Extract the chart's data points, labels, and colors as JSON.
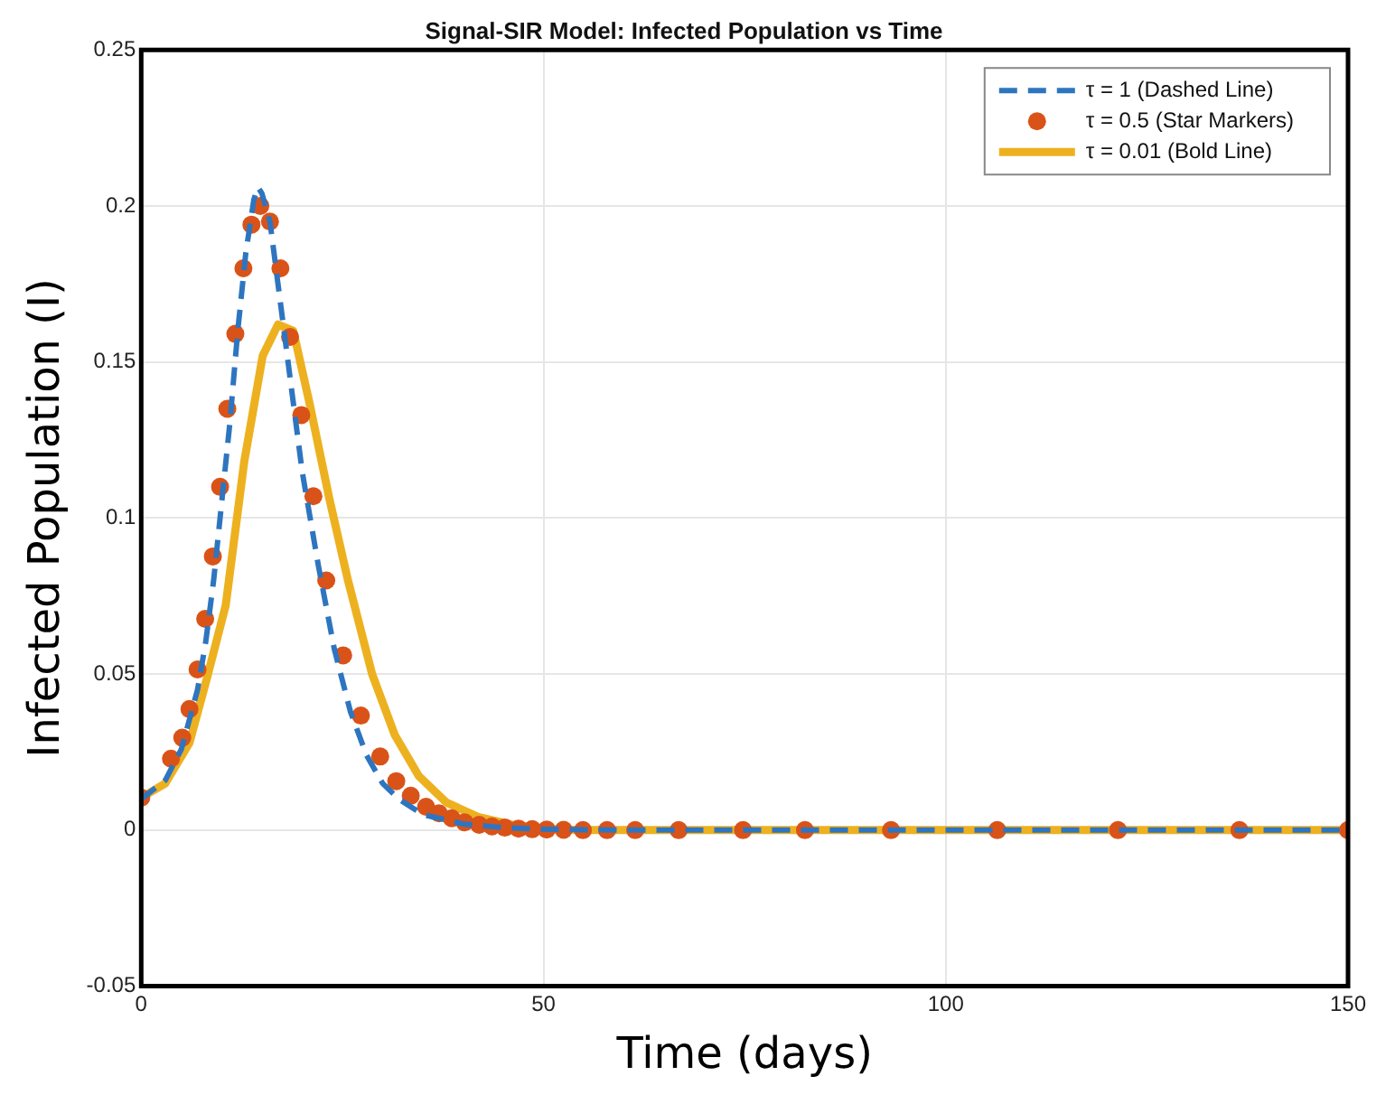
{
  "chart_data": {
    "type": "line",
    "title": "Signal-SIR Model: Infected Population vs Time",
    "xlabel": "Time (days)",
    "ylabel": "Infected Population (I)",
    "xlim": [
      0,
      150
    ],
    "xticks": [
      0,
      50,
      100,
      150
    ],
    "ylim": [
      -0.05,
      0.25
    ],
    "yticks": [
      -0.05,
      0,
      0.05,
      0.1,
      0.15,
      0.2,
      0.25
    ],
    "grid": true,
    "legend": "top right",
    "series": [
      {
        "name": "τ = 1 (Dashed Line)",
        "color": "#2e75c0",
        "line_style": "dashed",
        "marker": "none",
        "x": [
          0,
          3,
          5,
          7,
          8,
          9,
          10,
          11,
          12,
          13,
          14,
          14.5,
          15,
          16,
          17,
          18,
          19,
          20,
          22,
          24,
          26,
          28,
          30,
          32,
          35,
          40,
          45,
          50,
          60,
          150
        ],
        "values": [
          0.01,
          0.016,
          0.026,
          0.045,
          0.06,
          0.08,
          0.105,
          0.13,
          0.16,
          0.185,
          0.202,
          0.206,
          0.204,
          0.195,
          0.175,
          0.155,
          0.135,
          0.115,
          0.085,
          0.058,
          0.038,
          0.024,
          0.015,
          0.01,
          0.005,
          0.002,
          0.0008,
          0.0003,
          0,
          0
        ]
      },
      {
        "name": "τ = 0.5 (Star Markers)",
        "type": "scatter",
        "color": "#d95319",
        "marker": "circle",
        "x": [
          0,
          3.7,
          5.1,
          6,
          7,
          7.95,
          8.9,
          9.8,
          10.7,
          11.7,
          12.7,
          13.7,
          14.8,
          16,
          17.3,
          18.5,
          19.9,
          21.4,
          23,
          25.1,
          27.3,
          29.7,
          31.7,
          33.5,
          35.4,
          37,
          38.6,
          40.2,
          42,
          43.6,
          45.2,
          46.9,
          48.6,
          50.4,
          52.5,
          54.9,
          57.9,
          61.4,
          66.8,
          74.8,
          82.5,
          93.2,
          106.4,
          121.4,
          136.5,
          150
        ],
        "values": [
          0.0104,
          0.0229,
          0.0296,
          0.0388,
          0.0515,
          0.0677,
          0.0877,
          0.11,
          0.135,
          0.159,
          0.18,
          0.194,
          0.2,
          0.195,
          0.18,
          0.158,
          0.133,
          0.107,
          0.08,
          0.056,
          0.0367,
          0.0236,
          0.0157,
          0.011,
          0.0075,
          0.0054,
          0.0038,
          0.0025,
          0.0017,
          0.0012,
          0.0008,
          0.0005,
          0.0003,
          0.0002,
          0.0001,
          0,
          0,
          0,
          0,
          0,
          0,
          0,
          0,
          0,
          0,
          0
        ]
      },
      {
        "name": "τ = 0.01 (Bold Line)",
        "color": "#edb120",
        "line_style": "solid",
        "marker": "none",
        "x": [
          0,
          3,
          6,
          8.2,
          10.5,
          12.8,
          15.1,
          17,
          18.9,
          20.9,
          23.4,
          25.7,
          28.7,
          31.5,
          34.5,
          37.9,
          41.9,
          46.1,
          50.2,
          55,
          150
        ],
        "values": [
          0.0104,
          0.015,
          0.028,
          0.049,
          0.072,
          0.118,
          0.152,
          0.162,
          0.16,
          0.137,
          0.106,
          0.08,
          0.05,
          0.0306,
          0.0173,
          0.0089,
          0.0042,
          0.0017,
          0.0003,
          0,
          0
        ]
      }
    ]
  }
}
